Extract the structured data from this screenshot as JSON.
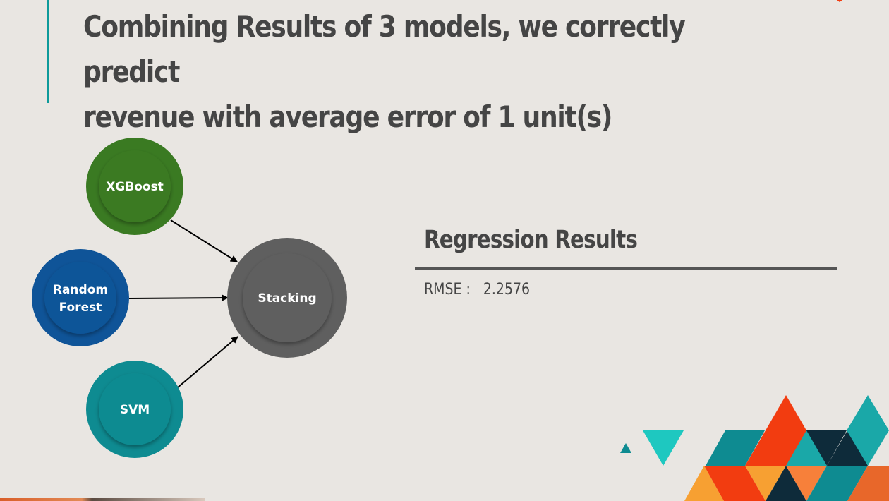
{
  "slide": {
    "title_line1": "Combining Results of 3 models, we correctly predict",
    "title_line2": "revenue with average error of 1 unit(s)"
  },
  "diagram": {
    "nodes": [
      {
        "id": "xgboost",
        "label": "XGBoost",
        "color": "#3a7a22"
      },
      {
        "id": "random_forest",
        "label_line1": "Random",
        "label_line2": "Forest",
        "color": "#0f5498"
      },
      {
        "id": "svm",
        "label": "SVM",
        "color": "#0e8b91"
      },
      {
        "id": "stacking",
        "label": "Stacking",
        "color": "#5f5f5f"
      }
    ]
  },
  "results": {
    "heading": "Regression Results",
    "metric_name": "RMSE :",
    "metric_value": "2.2576"
  },
  "colors": {
    "background": "#e9e6e2",
    "accent_teal": "#0e9a9a",
    "text": "#454545",
    "orange_red": "#f23c10",
    "dark_navy": "#0e2b3a",
    "light_teal": "#1ec8c0",
    "orange": "#f7a032"
  }
}
